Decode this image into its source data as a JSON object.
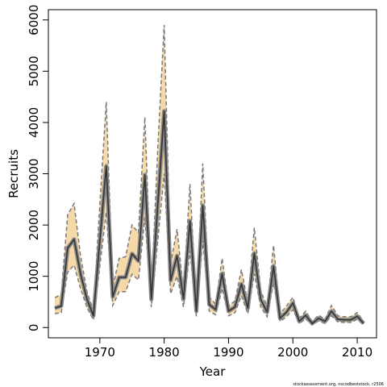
{
  "chart_data": {
    "type": "line",
    "title": "",
    "xlabel": "Year",
    "ylabel": "Recruits",
    "xlim": [
      1962,
      2013
    ],
    "ylim": [
      -200,
      6200
    ],
    "x_ticks": [
      1970,
      1980,
      1990,
      2000,
      2010
    ],
    "y_ticks": [
      0,
      1000,
      2000,
      3000,
      4000,
      5000,
      6000
    ],
    "grid": false,
    "footnote": "stockassessment.org, nscodbeststock, r2506",
    "colors": {
      "band_fill": "#f5d9a8",
      "bound_line": "#7a7a7a",
      "estimate_line": "#333333",
      "axis": "#000000"
    },
    "x": [
      1963,
      1964,
      1965,
      1966,
      1967,
      1968,
      1969,
      1970,
      1971,
      1972,
      1973,
      1974,
      1975,
      1976,
      1977,
      1978,
      1979,
      1980,
      1981,
      1982,
      1983,
      1984,
      1985,
      1986,
      1987,
      1988,
      1989,
      1990,
      1991,
      1992,
      1993,
      1994,
      1995,
      1996,
      1997,
      1998,
      1999,
      2000,
      2001,
      2002,
      2003,
      2004,
      2005,
      2006,
      2007,
      2008,
      2009,
      2010,
      2011
    ],
    "series": [
      {
        "name": "",
        "role": "estimate",
        "values": [
          380,
          420,
          1550,
          1720,
          1050,
          550,
          230,
          1700,
          3150,
          600,
          980,
          980,
          1440,
          1300,
          2980,
          550,
          2400,
          4220,
          920,
          1400,
          560,
          2080,
          320,
          2380,
          450,
          350,
          1050,
          320,
          400,
          850,
          380,
          1450,
          550,
          300,
          1200,
          180,
          300,
          480,
          120,
          240,
          80,
          180,
          120,
          320,
          160,
          150,
          150,
          220,
          80
        ]
      },
      {
        "name": "",
        "role": "upper",
        "values": [
          580,
          650,
          2200,
          2420,
          1400,
          700,
          320,
          2400,
          4400,
          780,
          1350,
          1380,
          2000,
          1850,
          4100,
          650,
          3500,
          5900,
          1250,
          1920,
          700,
          2800,
          400,
          3200,
          600,
          450,
          1350,
          420,
          520,
          1130,
          480,
          1950,
          720,
          400,
          1600,
          260,
          420,
          590,
          180,
          320,
          120,
          240,
          160,
          430,
          230,
          210,
          210,
          290,
          120
        ]
      },
      {
        "name": "",
        "role": "lower",
        "values": [
          270,
          290,
          1080,
          1220,
          760,
          390,
          150,
          1200,
          2250,
          430,
          700,
          700,
          1040,
          930,
          2150,
          400,
          1700,
          3000,
          660,
          1000,
          400,
          1500,
          220,
          1700,
          320,
          250,
          760,
          230,
          290,
          620,
          270,
          1050,
          400,
          210,
          870,
          120,
          210,
          350,
          80,
          170,
          50,
          130,
          80,
          230,
          110,
          100,
          100,
          160,
          50
        ]
      }
    ]
  }
}
